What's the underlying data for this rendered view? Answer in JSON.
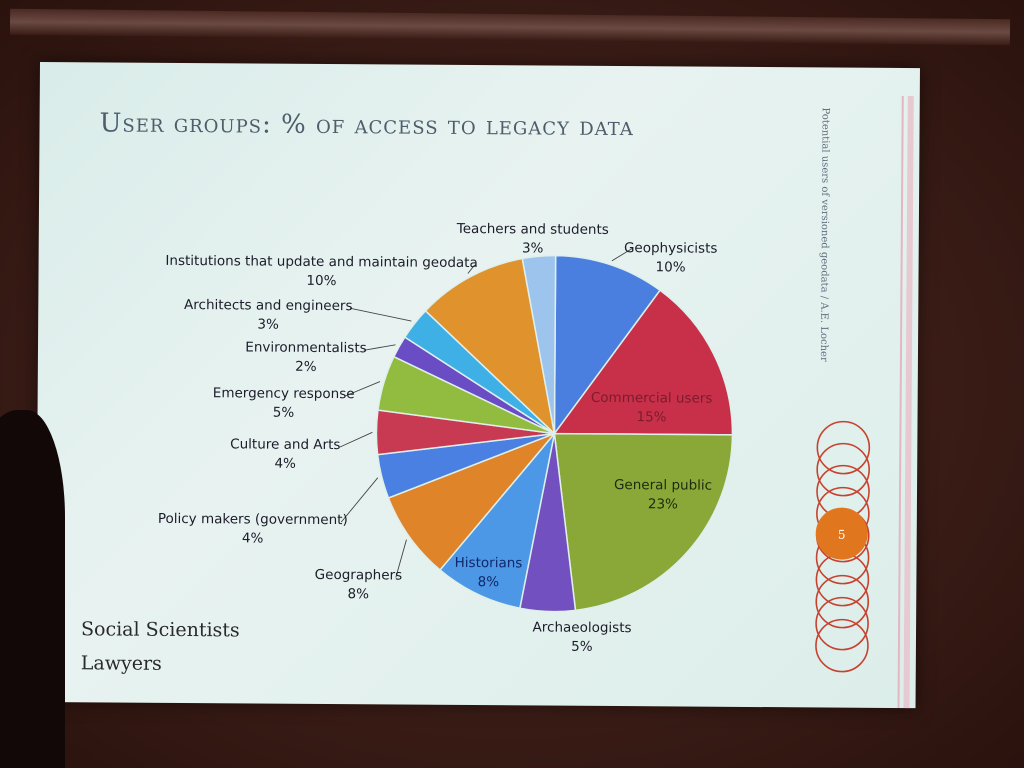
{
  "slide": {
    "title": "User groups: % of access to legacy data",
    "vertical_caption": "Potential users of versioned geodata / A.E. Locher",
    "slide_number": "5",
    "extra_items": [
      "Social Scientists",
      "Lawyers"
    ]
  },
  "chart_data": {
    "type": "pie",
    "title": "User groups: % of access to legacy data",
    "start": "12 o'clock",
    "direction": "clockwise",
    "slices": [
      {
        "label": "Geophysicists",
        "value": 10,
        "value_label": "10%",
        "color": "#4a7fe0"
      },
      {
        "label": "Commercial users",
        "value": 15,
        "value_label": "15%",
        "color": "#c8304a"
      },
      {
        "label": "General public",
        "value": 23,
        "value_label": "23%",
        "color": "#8aa838"
      },
      {
        "label": "Archaeologists",
        "value": 5,
        "value_label": "5%",
        "color": "#7350c0"
      },
      {
        "label": "Historians",
        "value": 8,
        "value_label": "8%",
        "color": "#4c98e6"
      },
      {
        "label": "Geographers",
        "value": 8,
        "value_label": "8%",
        "color": "#e0842a"
      },
      {
        "label": "Policy makers (government)",
        "value": 4,
        "value_label": "4%",
        "color": "#4a80e2"
      },
      {
        "label": "Culture and Arts",
        "value": 4,
        "value_label": "4%",
        "color": "#c83a52"
      },
      {
        "label": "Emergency response",
        "value": 5,
        "value_label": "5%",
        "color": "#92bc40"
      },
      {
        "label": "Environmentalists",
        "value": 2,
        "value_label": "2%",
        "color": "#6a4cc4"
      },
      {
        "label": "Architects and engineers",
        "value": 3,
        "value_label": "3%",
        "color": "#3fb0e6"
      },
      {
        "label": "Institutions that update and maintain geodata",
        "value": 10,
        "value_label": "10%",
        "color": "#e0922c"
      },
      {
        "label": "Teachers and students",
        "value": 3,
        "value_label": "3%",
        "color": "#9cc4ec"
      }
    ]
  },
  "colors": {
    "slide_background": "#dfefec",
    "title_text": "#4d5d6a",
    "ring_stroke": "#c8412e",
    "slide_number_fill": "#e0761e"
  }
}
